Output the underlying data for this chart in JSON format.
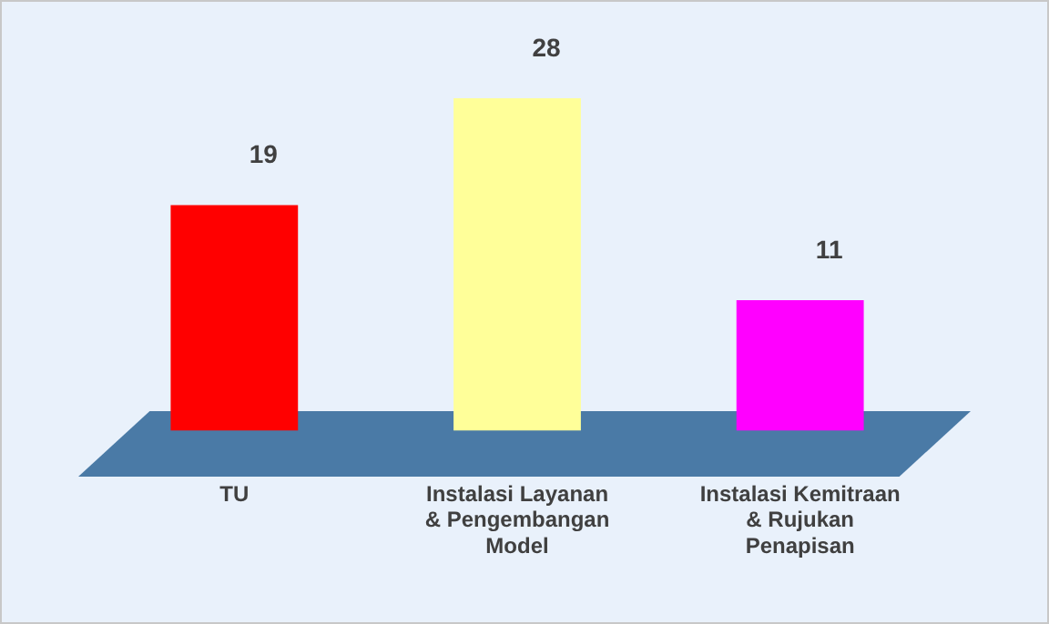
{
  "chart_data": {
    "type": "bar",
    "categories": [
      "TU",
      "Instalasi Layanan & Pengembangan Model",
      "Instalasi Kemitraan & Rujukan Penapisan"
    ],
    "values": [
      19,
      28,
      11
    ],
    "colors": [
      "#ff0000",
      "#ffff99",
      "#ff00ff"
    ],
    "data_labels": true,
    "grid": false,
    "legend": false
  }
}
